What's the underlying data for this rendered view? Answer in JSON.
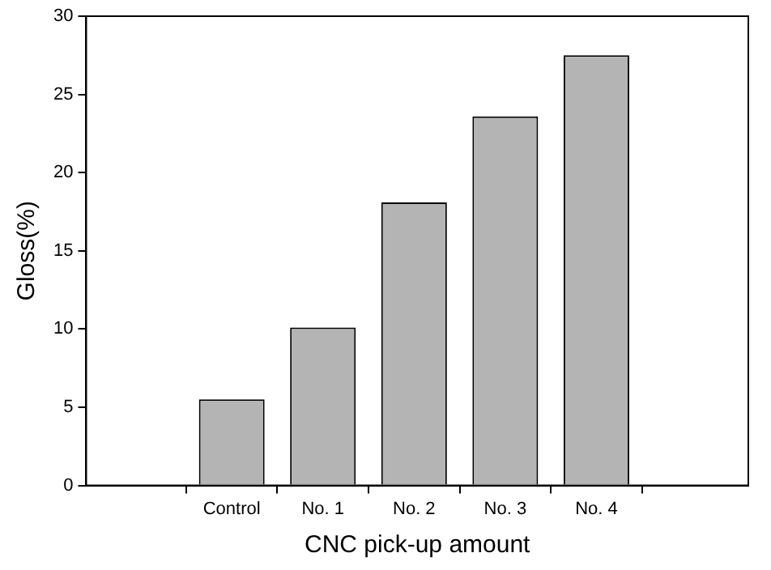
{
  "chart_data": {
    "type": "bar",
    "xlabel": "CNC pick-up amount",
    "ylabel": "Gloss(%)",
    "categories": [
      "Control",
      "No. 1",
      "No. 2",
      "No. 3",
      "No. 4"
    ],
    "values": [
      5.5,
      10.1,
      18.1,
      23.6,
      27.5
    ],
    "color": "#b4b4b4",
    "ylim": [
      0,
      30
    ],
    "yticks": [
      0,
      5,
      10,
      15,
      20,
      25,
      30
    ],
    "grid": false,
    "legend": false
  }
}
